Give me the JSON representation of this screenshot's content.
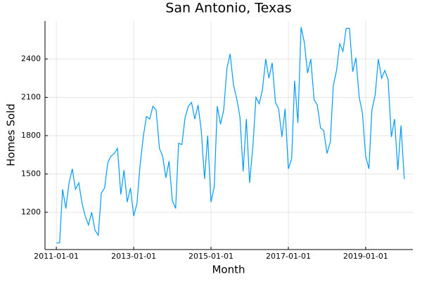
{
  "chart_data": {
    "type": "line",
    "title": "San Antonio, Texas",
    "x_label": "Month",
    "y_label": "Homes Sold",
    "x": [
      "2011-01-01",
      "2011-02-01",
      "2011-03-01",
      "2011-04-01",
      "2011-05-01",
      "2011-06-01",
      "2011-07-01",
      "2011-08-01",
      "2011-09-01",
      "2011-10-01",
      "2011-11-01",
      "2011-12-01",
      "2012-01-01",
      "2012-02-01",
      "2012-03-01",
      "2012-04-01",
      "2012-05-01",
      "2012-06-01",
      "2012-07-01",
      "2012-08-01",
      "2012-09-01",
      "2012-10-01",
      "2012-11-01",
      "2012-12-01",
      "2013-01-01",
      "2013-02-01",
      "2013-03-01",
      "2013-04-01",
      "2013-05-01",
      "2013-06-01",
      "2013-07-01",
      "2013-08-01",
      "2013-09-01",
      "2013-10-01",
      "2013-11-01",
      "2013-12-01",
      "2014-01-01",
      "2014-02-01",
      "2014-03-01",
      "2014-04-01",
      "2014-05-01",
      "2014-06-01",
      "2014-07-01",
      "2014-08-01",
      "2014-09-01",
      "2014-10-01",
      "2014-11-01",
      "2014-12-01",
      "2015-01-01",
      "2015-02-01",
      "2015-03-01",
      "2015-04-01",
      "2015-05-01",
      "2015-06-01",
      "2015-07-01",
      "2015-08-01",
      "2015-09-01",
      "2015-10-01",
      "2015-11-01",
      "2015-12-01",
      "2016-01-01",
      "2016-02-01",
      "2016-03-01",
      "2016-04-01",
      "2016-05-01",
      "2016-06-01",
      "2016-07-01",
      "2016-08-01",
      "2016-09-01",
      "2016-10-01",
      "2016-11-01",
      "2016-12-01",
      "2017-01-01",
      "2017-02-01",
      "2017-03-01",
      "2017-04-01",
      "2017-05-01",
      "2017-06-01",
      "2017-07-01",
      "2017-08-01",
      "2017-09-01",
      "2017-10-01",
      "2017-11-01",
      "2017-12-01",
      "2018-01-01",
      "2018-02-01",
      "2018-03-01",
      "2018-04-01",
      "2018-05-01",
      "2018-06-01",
      "2018-07-01",
      "2018-08-01",
      "2018-09-01",
      "2018-10-01",
      "2018-11-01",
      "2018-12-01",
      "2019-01-01",
      "2019-02-01",
      "2019-03-01",
      "2019-04-01",
      "2019-05-01",
      "2019-06-01",
      "2019-07-01",
      "2019-08-01",
      "2019-09-01",
      "2019-10-01",
      "2019-11-01",
      "2019-12-01",
      "2020-01-01"
    ],
    "series": [
      {
        "name": "Homes Sold",
        "color": "#009af9",
        "values": [
          960,
          960,
          1380,
          1230,
          1430,
          1540,
          1380,
          1430,
          1270,
          1170,
          1100,
          1200,
          1060,
          1020,
          1350,
          1390,
          1590,
          1640,
          1660,
          1700,
          1340,
          1530,
          1280,
          1390,
          1170,
          1270,
          1560,
          1790,
          1950,
          1930,
          2030,
          2000,
          1700,
          1640,
          1470,
          1600,
          1290,
          1230,
          1740,
          1730,
          1940,
          2030,
          2060,
          1930,
          2040,
          1840,
          1460,
          1800,
          1280,
          1400,
          2030,
          1890,
          2000,
          2330,
          2440,
          2200,
          2090,
          1950,
          1520,
          1930,
          1430,
          1720,
          2100,
          2050,
          2160,
          2400,
          2250,
          2370,
          2060,
          2010,
          1790,
          2010,
          1540,
          1620,
          2230,
          1900,
          2650,
          2530,
          2290,
          2400,
          2080,
          2040,
          1860,
          1840,
          1660,
          1750,
          2190,
          2310,
          2520,
          2460,
          2640,
          2640,
          2300,
          2410,
          2100,
          1980,
          1640,
          1540,
          2000,
          2120,
          2400,
          2250,
          2310,
          2240,
          1790,
          1930,
          1530,
          1880,
          1460
        ]
      }
    ],
    "xlim": [
      "2010-09-16",
      "2020-03-22"
    ],
    "xticks": [
      "2011-01-01",
      "2013-01-01",
      "2015-01-01",
      "2017-01-01",
      "2019-01-01"
    ],
    "ylim": [
      908,
      2697
    ],
    "yticks": [
      1200,
      1500,
      1800,
      2100,
      2400
    ],
    "grid": true
  }
}
